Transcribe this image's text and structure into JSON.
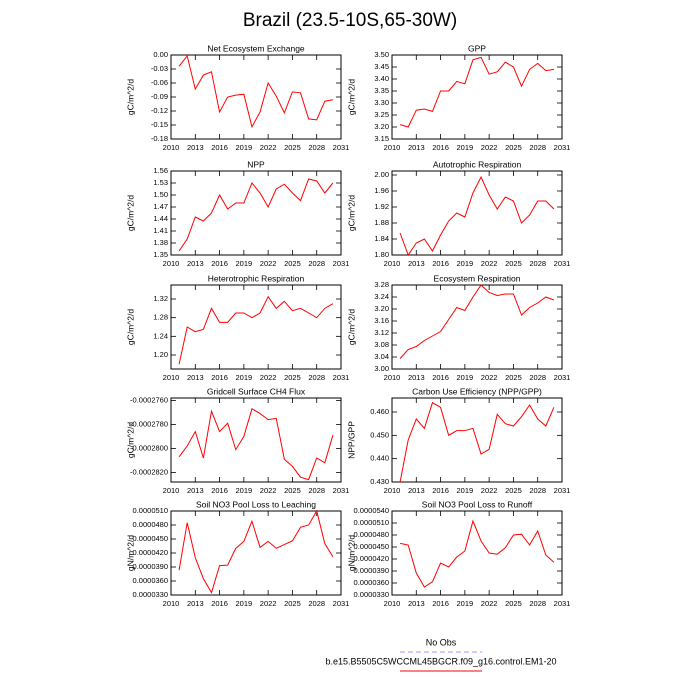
{
  "title": "Brazil (23.5-10S,65-30W)",
  "legend": [
    {
      "name": "No Obs",
      "color": "#9999ff",
      "dashed": true
    },
    {
      "name": "b.e15.B5505C5WCCML45BGCR.f09_g16.control.EM1-20",
      "color": "#ff0000",
      "dashed": false
    }
  ],
  "chart_data": [
    {
      "type": "line",
      "title": "Net Ecosystem Exchange",
      "ylabel": "gC/m^2/d",
      "x": [
        2011,
        2012,
        2013,
        2014,
        2015,
        2016,
        2017,
        2018,
        2019,
        2020,
        2021,
        2022,
        2023,
        2024,
        2025,
        2026,
        2027,
        2028,
        2029,
        2030
      ],
      "xlim": [
        2010,
        2031
      ],
      "xticks": [
        2010,
        2013,
        2016,
        2019,
        2022,
        2025,
        2028,
        2031
      ],
      "ylim": [
        -0.18,
        0
      ],
      "yticks": [
        {
          "value": 0,
          "label": "0.00"
        },
        -0.03,
        -0.06,
        -0.09,
        -0.12,
        -0.15,
        -0.18
      ],
      "series": [
        {
          "color": "#ff0000",
          "values": [
            -0.024,
            -0.002,
            -0.073,
            -0.043,
            -0.036,
            -0.122,
            -0.09,
            -0.086,
            -0.084,
            -0.154,
            -0.122,
            -0.06,
            -0.088,
            -0.124,
            -0.079,
            -0.081,
            -0.137,
            -0.139,
            -0.099,
            -0.096
          ]
        }
      ]
    },
    {
      "type": "line",
      "title": "GPP",
      "ylabel": "gC/m^2/d",
      "x": [
        2011,
        2012,
        2013,
        2014,
        2015,
        2016,
        2017,
        2018,
        2019,
        2020,
        2021,
        2022,
        2023,
        2024,
        2025,
        2026,
        2027,
        2028,
        2029,
        2030
      ],
      "xlim": [
        2010,
        2031
      ],
      "xticks": [
        2010,
        2013,
        2016,
        2019,
        2022,
        2025,
        2028,
        2031
      ],
      "ylim": [
        3.15,
        3.5
      ],
      "yticks": [
        3.15,
        {
          "value": 3.2,
          "label": "3.20"
        },
        3.25,
        {
          "value": 3.3,
          "label": "3.30"
        },
        3.35,
        {
          "value": 3.4,
          "label": "3.40"
        },
        3.45,
        {
          "value": 3.5,
          "label": "3.50"
        }
      ],
      "series": [
        {
          "color": "#ff0000",
          "values": [
            3.21,
            3.2,
            3.27,
            3.275,
            3.265,
            3.35,
            3.35,
            3.39,
            3.38,
            3.48,
            3.49,
            3.42,
            3.43,
            3.47,
            3.45,
            3.37,
            3.44,
            3.465,
            3.435,
            3.44
          ]
        }
      ]
    },
    {
      "type": "line",
      "title": "NPP",
      "ylabel": "gC/m^2/d",
      "x": [
        2011,
        2012,
        2013,
        2014,
        2015,
        2016,
        2017,
        2018,
        2019,
        2020,
        2021,
        2022,
        2023,
        2024,
        2025,
        2026,
        2027,
        2028,
        2029,
        2030
      ],
      "xlim": [
        2010,
        2031
      ],
      "xticks": [
        2010,
        2013,
        2016,
        2019,
        2022,
        2025,
        2028,
        2031
      ],
      "ylim": [
        1.35,
        1.56
      ],
      "yticks": [
        1.35,
        1.38,
        1.41,
        1.44,
        1.47,
        {
          "value": 1.5,
          "label": "1.50"
        },
        1.53,
        1.56
      ],
      "series": [
        {
          "color": "#ff0000",
          "values": [
            1.36,
            1.39,
            1.445,
            1.435,
            1.455,
            1.5,
            1.465,
            1.48,
            1.48,
            1.53,
            1.505,
            1.47,
            1.515,
            1.527,
            1.505,
            1.486,
            1.54,
            1.535,
            1.505,
            1.53
          ]
        }
      ]
    },
    {
      "type": "line",
      "title": "Autotrophic Respiration",
      "ylabel": "gC/m^2/d",
      "x": [
        2011,
        2012,
        2013,
        2014,
        2015,
        2016,
        2017,
        2018,
        2019,
        2020,
        2021,
        2022,
        2023,
        2024,
        2025,
        2026,
        2027,
        2028,
        2029,
        2030
      ],
      "xlim": [
        2010,
        2031
      ],
      "xticks": [
        2010,
        2013,
        2016,
        2019,
        2022,
        2025,
        2028,
        2031
      ],
      "ylim": [
        1.8,
        2.01
      ],
      "yticks": [
        {
          "value": 1.8,
          "label": "1.80"
        },
        1.84,
        1.88,
        1.92,
        1.96,
        {
          "value": 2,
          "label": "2.00"
        }
      ],
      "series": [
        {
          "color": "#ff0000",
          "values": [
            1.855,
            1.8,
            1.83,
            1.84,
            1.81,
            1.85,
            1.885,
            1.905,
            1.895,
            1.955,
            1.995,
            1.95,
            1.915,
            1.945,
            1.935,
            1.88,
            1.9,
            1.935,
            1.935,
            1.915
          ]
        }
      ]
    },
    {
      "type": "line",
      "title": "Heterotrophic Respiration",
      "ylabel": "gC/m^2/d",
      "x": [
        2011,
        2012,
        2013,
        2014,
        2015,
        2016,
        2017,
        2018,
        2019,
        2020,
        2021,
        2022,
        2023,
        2024,
        2025,
        2026,
        2027,
        2028,
        2029,
        2030
      ],
      "xlim": [
        2010,
        2031
      ],
      "xticks": [
        2010,
        2013,
        2016,
        2019,
        2022,
        2025,
        2028,
        2031
      ],
      "ylim": [
        1.17,
        1.35
      ],
      "yticks": [
        {
          "value": 1.2,
          "label": "1.20"
        },
        1.24,
        1.28,
        1.32
      ],
      "series": [
        {
          "color": "#ff0000",
          "values": [
            1.18,
            1.26,
            1.25,
            1.255,
            1.3,
            1.27,
            1.27,
            1.29,
            1.29,
            1.28,
            1.29,
            1.325,
            1.3,
            1.315,
            1.295,
            1.3,
            1.29,
            1.28,
            1.3,
            1.31
          ]
        }
      ]
    },
    {
      "type": "line",
      "title": "Ecosystem Respiration",
      "ylabel": "gC/m^2/d",
      "x": [
        2011,
        2012,
        2013,
        2014,
        2015,
        2016,
        2017,
        2018,
        2019,
        2020,
        2021,
        2022,
        2023,
        2024,
        2025,
        2026,
        2027,
        2028,
        2029,
        2030
      ],
      "xlim": [
        2010,
        2031
      ],
      "xticks": [
        2010,
        2013,
        2016,
        2019,
        2022,
        2025,
        2028,
        2031
      ],
      "ylim": [
        3.0,
        3.28
      ],
      "yticks": [
        {
          "value": 3,
          "label": "3.00"
        },
        3.04,
        3.08,
        3.12,
        3.16,
        {
          "value": 3.2,
          "label": "3.20"
        },
        3.24,
        3.28
      ],
      "series": [
        {
          "color": "#ff0000",
          "values": [
            3.035,
            3.065,
            3.075,
            3.095,
            3.11,
            3.125,
            3.165,
            3.205,
            3.195,
            3.24,
            3.28,
            3.255,
            3.245,
            3.25,
            3.25,
            3.18,
            3.205,
            3.22,
            3.24,
            3.23
          ]
        }
      ]
    },
    {
      "type": "line",
      "title": "Gridcell Surface CH4 Flux",
      "ylabel": "gC/m^2/d",
      "x": [
        2011,
        2012,
        2013,
        2014,
        2015,
        2016,
        2017,
        2018,
        2019,
        2020,
        2021,
        2022,
        2023,
        2024,
        2025,
        2026,
        2027,
        2028,
        2029,
        2030
      ],
      "xlim": [
        2010,
        2031
      ],
      "xticks": [
        2010,
        2013,
        2016,
        2019,
        2022,
        2025,
        2028,
        2031
      ],
      "ylim": [
        -0.0002828,
        -0.0002758
      ],
      "yticks": [
        {
          "value": -0.000276,
          "label": "-0.0002760"
        },
        {
          "value": -0.000278,
          "label": "-0.0002780"
        },
        {
          "value": -0.00028,
          "label": "-0.0002800"
        },
        {
          "value": -0.000282,
          "label": "-0.0002820"
        }
      ],
      "series": [
        {
          "color": "#ff0000",
          "values": [
            -0.0002807,
            -0.0002798,
            -0.0002786,
            -0.0002808,
            -0.0002769,
            -0.0002786,
            -0.0002779,
            -0.0002801,
            -0.000279,
            -0.0002767,
            -0.0002771,
            -0.0002776,
            -0.0002775,
            -0.0002809,
            -0.0002815,
            -0.0002824,
            -0.0002826,
            -0.0002808,
            -0.0002812,
            -0.0002789
          ]
        }
      ]
    },
    {
      "type": "line",
      "title": "Carbon Use Efficiency (NPP/GPP)",
      "ylabel": "NPP/GPP",
      "x": [
        2011,
        2012,
        2013,
        2014,
        2015,
        2016,
        2017,
        2018,
        2019,
        2020,
        2021,
        2022,
        2023,
        2024,
        2025,
        2026,
        2027,
        2028,
        2029,
        2030
      ],
      "xlim": [
        2010,
        2031
      ],
      "xticks": [
        2010,
        2013,
        2016,
        2019,
        2022,
        2025,
        2028,
        2031
      ],
      "ylim": [
        0.43,
        0.466
      ],
      "yticks": [
        {
          "value": 0.43,
          "label": "0.430"
        },
        {
          "value": 0.44,
          "label": "0.440"
        },
        {
          "value": 0.45,
          "label": "0.450"
        },
        {
          "value": 0.46,
          "label": "0.460"
        }
      ],
      "series": [
        {
          "color": "#ff0000",
          "values": [
            0.43,
            0.448,
            0.457,
            0.453,
            0.464,
            0.462,
            0.45,
            0.452,
            0.452,
            0.453,
            0.442,
            0.444,
            0.459,
            0.455,
            0.454,
            0.458,
            0.463,
            0.457,
            0.454,
            0.462
          ]
        }
      ]
    },
    {
      "type": "line",
      "title": "Soil NO3 Pool Loss to Leaching",
      "ylabel": "gN/m^2/d",
      "x": [
        2011,
        2012,
        2013,
        2014,
        2015,
        2016,
        2017,
        2018,
        2019,
        2020,
        2021,
        2022,
        2023,
        2024,
        2025,
        2026,
        2027,
        2028,
        2029,
        2030
      ],
      "xlim": [
        2010,
        2031
      ],
      "xticks": [
        2010,
        2013,
        2016,
        2019,
        2022,
        2025,
        2028,
        2031
      ],
      "ylim": [
        3.3e-05,
        5.1e-05
      ],
      "yticks": [
        {
          "value": 3.3e-05,
          "label": "0.0000330"
        },
        {
          "value": 3.6e-05,
          "label": "0.0000360"
        },
        {
          "value": 3.9e-05,
          "label": "0.0000390"
        },
        {
          "value": 4.2e-05,
          "label": "0.0000420"
        },
        {
          "value": 4.5e-05,
          "label": "0.0000450"
        },
        {
          "value": 4.8e-05,
          "label": "0.0000480"
        },
        {
          "value": 5.1e-05,
          "label": "0.0000510"
        }
      ],
      "series": [
        {
          "color": "#ff0000",
          "values": [
            3.83e-05,
            4.85e-05,
            4.1e-05,
            3.65e-05,
            3.35e-05,
            3.93e-05,
            3.94e-05,
            4.3e-05,
            4.45e-05,
            4.88e-05,
            4.32e-05,
            4.45e-05,
            4.3e-05,
            4.38e-05,
            4.46e-05,
            4.75e-05,
            4.8e-05,
            5.1e-05,
            4.4e-05,
            4.12e-05
          ]
        }
      ]
    },
    {
      "type": "line",
      "title": "Soil NO3 Pool Loss to Runoff",
      "ylabel": "gN/m^2/d",
      "x": [
        2011,
        2012,
        2013,
        2014,
        2015,
        2016,
        2017,
        2018,
        2019,
        2020,
        2021,
        2022,
        2023,
        2024,
        2025,
        2026,
        2027,
        2028,
        2029,
        2030
      ],
      "xlim": [
        2010,
        2031
      ],
      "xticks": [
        2010,
        2013,
        2016,
        2019,
        2022,
        2025,
        2028,
        2031
      ],
      "ylim": [
        3.3e-05,
        5.4e-05
      ],
      "yticks": [
        {
          "value": 3.3e-05,
          "label": "0.0000330"
        },
        {
          "value": 3.6e-05,
          "label": "0.0000360"
        },
        {
          "value": 3.9e-05,
          "label": "0.0000390"
        },
        {
          "value": 4.2e-05,
          "label": "0.0000420"
        },
        {
          "value": 4.5e-05,
          "label": "0.0000450"
        },
        {
          "value": 4.8e-05,
          "label": "0.0000480"
        },
        {
          "value": 5.1e-05,
          "label": "0.0000510"
        },
        {
          "value": 5.4e-05,
          "label": "0.0000540"
        }
      ],
      "series": [
        {
          "color": "#ff0000",
          "values": [
            4.59e-05,
            4.55e-05,
            3.85e-05,
            3.5e-05,
            3.63e-05,
            4.1e-05,
            4e-05,
            4.25e-05,
            4.4e-05,
            5.15e-05,
            4.65e-05,
            4.35e-05,
            4.32e-05,
            4.48e-05,
            4.8e-05,
            4.82e-05,
            4.55e-05,
            4.9e-05,
            4.3e-05,
            4.12e-05
          ]
        }
      ]
    }
  ]
}
